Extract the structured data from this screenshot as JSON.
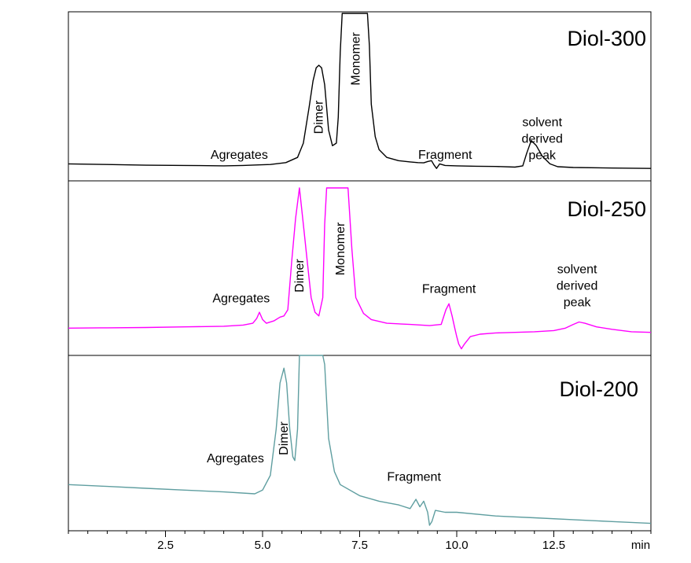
{
  "chart_data": {
    "type": "line",
    "x_unit_label": "min",
    "x_range": [
      0,
      15
    ],
    "x_ticks": [
      {
        "value": 2.5,
        "label": "2.5"
      },
      {
        "value": 5.0,
        "label": "5.0"
      },
      {
        "value": 7.5,
        "label": "7.5"
      },
      {
        "value": 10.0,
        "label": "10.0"
      },
      {
        "value": 12.5,
        "label": "12.5"
      }
    ],
    "grid": false,
    "legend": "none",
    "panels": [
      {
        "key": "p300",
        "title": "Diol-300",
        "color": "#000000",
        "points": [
          [
            0,
            0.04
          ],
          [
            1,
            0.035
          ],
          [
            2,
            0.03
          ],
          [
            3,
            0.028
          ],
          [
            4,
            0.025
          ],
          [
            4.5,
            0.028
          ],
          [
            4.9,
            0.032
          ],
          [
            5.2,
            0.035
          ],
          [
            5.6,
            0.05
          ],
          [
            5.9,
            0.09
          ],
          [
            6.05,
            0.2
          ],
          [
            6.2,
            0.48
          ],
          [
            6.3,
            0.68
          ],
          [
            6.38,
            0.78
          ],
          [
            6.45,
            0.8
          ],
          [
            6.52,
            0.78
          ],
          [
            6.6,
            0.65
          ],
          [
            6.7,
            0.3
          ],
          [
            6.8,
            0.18
          ],
          [
            6.9,
            0.2
          ],
          [
            6.95,
            0.4
          ],
          [
            7.0,
            0.9
          ],
          [
            7.05,
            1.2
          ],
          [
            7.7,
            1.2
          ],
          [
            7.75,
            0.95
          ],
          [
            7.8,
            0.5
          ],
          [
            7.9,
            0.25
          ],
          [
            8.0,
            0.15
          ],
          [
            8.2,
            0.09
          ],
          [
            8.5,
            0.065
          ],
          [
            8.8,
            0.055
          ],
          [
            9.0,
            0.05
          ],
          [
            9.15,
            0.048
          ],
          [
            9.25,
            0.058
          ],
          [
            9.35,
            0.065
          ],
          [
            9.42,
            0.03
          ],
          [
            9.48,
            0.005
          ],
          [
            9.56,
            0.04
          ],
          [
            9.7,
            0.028
          ],
          [
            10.0,
            0.025
          ],
          [
            10.5,
            0.022
          ],
          [
            11.0,
            0.02
          ],
          [
            11.5,
            0.015
          ],
          [
            11.7,
            0.025
          ],
          [
            11.8,
            0.12
          ],
          [
            11.92,
            0.22
          ],
          [
            12.05,
            0.18
          ],
          [
            12.2,
            0.1
          ],
          [
            12.4,
            0.04
          ],
          [
            12.6,
            0.018
          ],
          [
            13.0,
            0.012
          ],
          [
            14.0,
            0.008
          ],
          [
            15.0,
            0.005
          ]
        ],
        "annotations": [
          {
            "text": "Agregates",
            "x": 4.4,
            "y": 0.08
          },
          {
            "text": "Dimer",
            "x": 6.45,
            "y": 0.4,
            "rotate": true
          },
          {
            "text": "Monomer",
            "x": 7.4,
            "y": 0.85,
            "rotate": true
          },
          {
            "text": "Fragment",
            "x": 9.7,
            "y": 0.08
          },
          {
            "lines": [
              "solvent",
              "derived",
              "peak"
            ],
            "x": 12.2,
            "y": 0.33
          }
        ]
      },
      {
        "key": "p250",
        "title": "Diol-250",
        "color": "#ff00ff",
        "points": [
          [
            0,
            0.05
          ],
          [
            1,
            0.052
          ],
          [
            2,
            0.055
          ],
          [
            3,
            0.06
          ],
          [
            4,
            0.065
          ],
          [
            4.5,
            0.075
          ],
          [
            4.75,
            0.09
          ],
          [
            4.85,
            0.13
          ],
          [
            4.92,
            0.18
          ],
          [
            5.0,
            0.12
          ],
          [
            5.1,
            0.09
          ],
          [
            5.3,
            0.11
          ],
          [
            5.45,
            0.14
          ],
          [
            5.55,
            0.15
          ],
          [
            5.65,
            0.2
          ],
          [
            5.75,
            0.6
          ],
          [
            5.85,
            0.95
          ],
          [
            5.95,
            1.2
          ],
          [
            6.05,
            0.9
          ],
          [
            6.15,
            0.6
          ],
          [
            6.25,
            0.3
          ],
          [
            6.35,
            0.18
          ],
          [
            6.45,
            0.15
          ],
          [
            6.55,
            0.3
          ],
          [
            6.6,
            0.9
          ],
          [
            6.65,
            1.2
          ],
          [
            7.2,
            1.2
          ],
          [
            7.3,
            0.7
          ],
          [
            7.4,
            0.3
          ],
          [
            7.6,
            0.17
          ],
          [
            7.8,
            0.12
          ],
          [
            8.2,
            0.09
          ],
          [
            8.8,
            0.08
          ],
          [
            9.3,
            0.07
          ],
          [
            9.6,
            0.08
          ],
          [
            9.72,
            0.2
          ],
          [
            9.8,
            0.25
          ],
          [
            9.88,
            0.15
          ],
          [
            9.95,
            0.05
          ],
          [
            10.0,
            -0.02
          ],
          [
            10.05,
            -0.08
          ],
          [
            10.12,
            -0.12
          ],
          [
            10.2,
            -0.08
          ],
          [
            10.35,
            -0.02
          ],
          [
            10.6,
            0.0
          ],
          [
            11.0,
            0.01
          ],
          [
            11.5,
            0.015
          ],
          [
            12.0,
            0.02
          ],
          [
            12.5,
            0.03
          ],
          [
            12.8,
            0.05
          ],
          [
            13.0,
            0.08
          ],
          [
            13.15,
            0.1
          ],
          [
            13.3,
            0.09
          ],
          [
            13.6,
            0.06
          ],
          [
            14.0,
            0.04
          ],
          [
            14.5,
            0.02
          ],
          [
            15.0,
            0.015
          ]
        ],
        "annotations": [
          {
            "text": "Agregates",
            "x": 4.45,
            "y": 0.26
          },
          {
            "text": "Dimer",
            "x": 5.95,
            "y": 0.48,
            "rotate": true
          },
          {
            "text": "Monomer",
            "x": 7.0,
            "y": 0.7,
            "rotate": true
          },
          {
            "text": "Fragment",
            "x": 9.8,
            "y": 0.34
          },
          {
            "lines": [
              "solvent",
              "derived",
              "peak"
            ],
            "x": 13.1,
            "y": 0.5
          }
        ]
      },
      {
        "key": "p200",
        "title": "Diol-200",
        "color": "#5f9ea0",
        "points": [
          [
            0,
            0.25
          ],
          [
            1,
            0.24
          ],
          [
            2,
            0.23
          ],
          [
            3,
            0.22
          ],
          [
            4,
            0.21
          ],
          [
            4.8,
            0.2
          ],
          [
            5.0,
            0.22
          ],
          [
            5.2,
            0.3
          ],
          [
            5.35,
            0.55
          ],
          [
            5.45,
            0.8
          ],
          [
            5.55,
            0.88
          ],
          [
            5.62,
            0.8
          ],
          [
            5.7,
            0.55
          ],
          [
            5.78,
            0.4
          ],
          [
            5.83,
            0.38
          ],
          [
            5.9,
            0.55
          ],
          [
            5.95,
            0.95
          ],
          [
            6.0,
            1.2
          ],
          [
            6.55,
            1.2
          ],
          [
            6.6,
            0.9
          ],
          [
            6.7,
            0.5
          ],
          [
            6.85,
            0.32
          ],
          [
            7.0,
            0.25
          ],
          [
            7.5,
            0.19
          ],
          [
            8.0,
            0.16
          ],
          [
            8.5,
            0.14
          ],
          [
            8.8,
            0.12
          ],
          [
            8.95,
            0.17
          ],
          [
            9.05,
            0.13
          ],
          [
            9.15,
            0.16
          ],
          [
            9.25,
            0.1
          ],
          [
            9.3,
            0.03
          ],
          [
            9.36,
            0.05
          ],
          [
            9.45,
            0.11
          ],
          [
            9.7,
            0.1
          ],
          [
            10.0,
            0.1
          ],
          [
            11.0,
            0.08
          ],
          [
            12.0,
            0.07
          ],
          [
            13.0,
            0.06
          ],
          [
            14.0,
            0.05
          ],
          [
            15.0,
            0.04
          ]
        ],
        "annotations": [
          {
            "text": "Agregates",
            "x": 4.3,
            "y": 0.37
          },
          {
            "text": "Dimer",
            "x": 5.55,
            "y": 0.5,
            "rotate": true
          },
          {
            "text": "Fragment",
            "x": 8.9,
            "y": 0.27
          }
        ]
      }
    ]
  }
}
